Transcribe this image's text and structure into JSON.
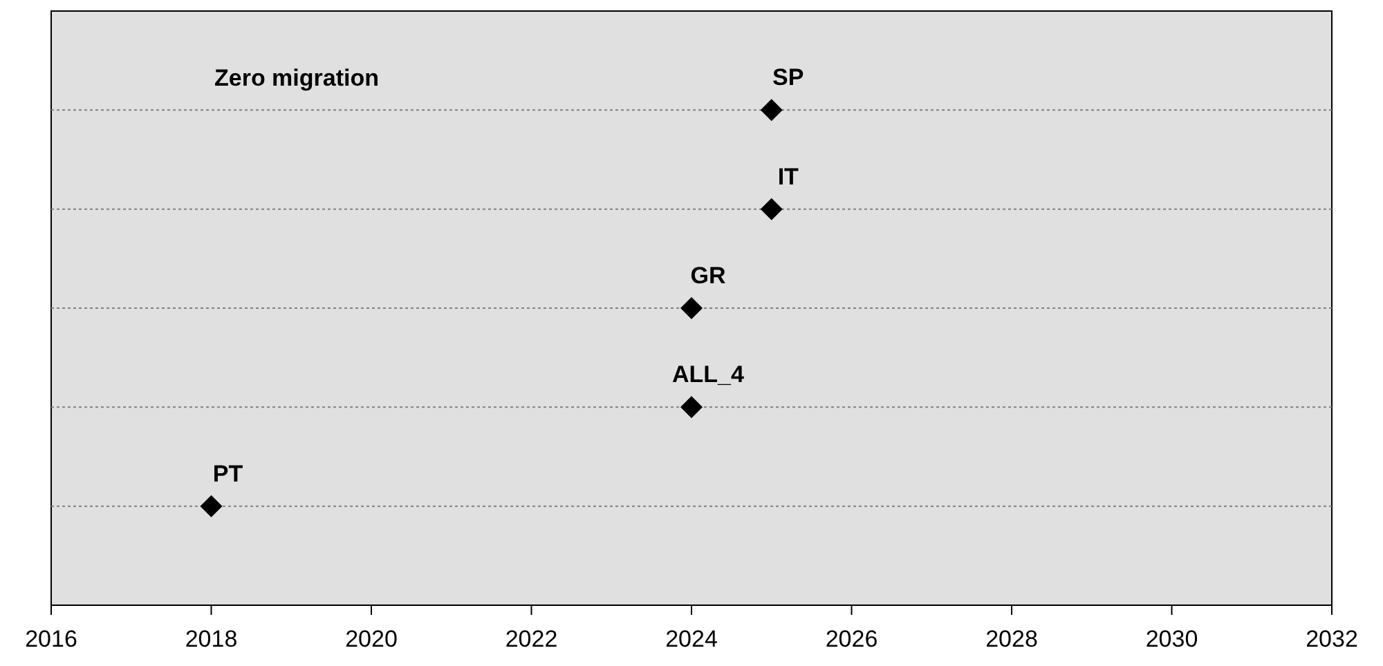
{
  "chart_data": {
    "type": "scatter",
    "orientation": "horizontal",
    "title": "Zero migration",
    "categories": [
      "SP",
      "IT",
      "GR",
      "ALL_4",
      "PT"
    ],
    "values": [
      2025,
      2025,
      2024,
      2024,
      2018
    ],
    "color": "#000000",
    "marker": "diamond",
    "grid": "y",
    "xlim": [
      2016,
      2032
    ],
    "xticks": [
      2016,
      2018,
      2020,
      2022,
      2024,
      2026,
      2028,
      2030,
      2032
    ]
  }
}
